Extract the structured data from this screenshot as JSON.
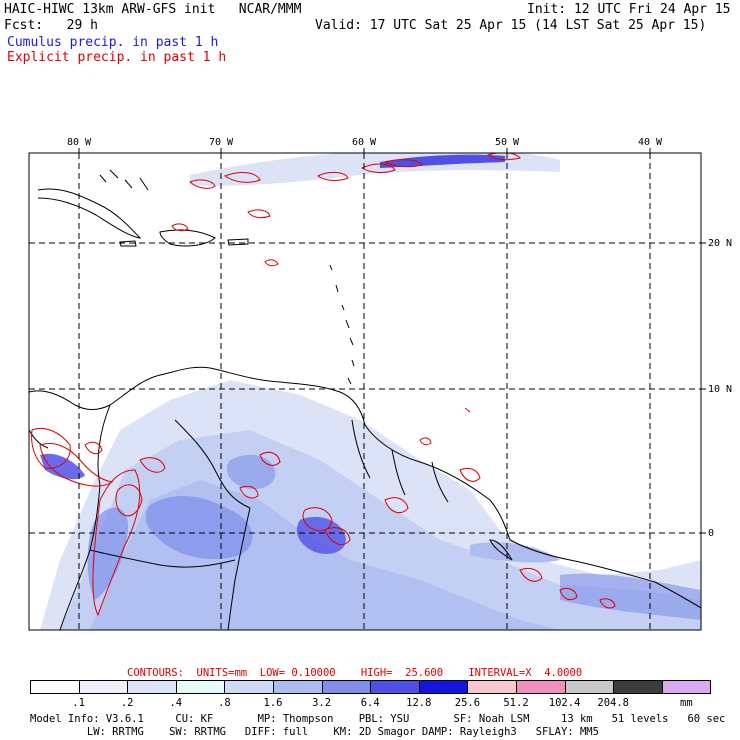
{
  "header": {
    "line1_left": "HAIC-HIWC 13km ARW-GFS init   NCAR/MMM",
    "line1_right": "Init: 12 UTC Fri 24 Apr 15",
    "line2_left": "Fcst:   29 h",
    "line2_right": "Valid: 17 UTC Sat 25 Apr 15 (14 LST Sat 25 Apr 15)",
    "legend_cumulus": "Cumulus precip. in past 1 h",
    "legend_explicit": "Explicit precip. in past 1 h"
  },
  "map": {
    "lon_labels": [
      "80 W",
      "70 W",
      "60 W",
      "50 W",
      "40 W"
    ],
    "lat_labels": [
      "20 N",
      "10 N",
      "0"
    ]
  },
  "contours_line": "CONTOURS:  UNITS=mm  LOW= 0.10000    HIGH=  25.600    INTERVAL=X  4.0000",
  "colorbar": {
    "labels": [
      ".1",
      ".2",
      ".4",
      ".8",
      "1.6",
      "3.2",
      "6.4",
      "12.8",
      "25.6",
      "51.2",
      "102.4",
      "204.8"
    ],
    "unit": "mm",
    "colors": [
      "#ffffff",
      "#eef1fb",
      "#dde3f7",
      "#e8fafa",
      "#cfdaf5",
      "#aebcf0",
      "#8090ea",
      "#5050e6",
      "#1515e0",
      "#f8c6cc",
      "#f090bc",
      "#c8c8c8",
      "#3c3c3c",
      "#dcaaf0"
    ]
  },
  "model_info": {
    "line1": "Model Info: V3.6.1     CU: KF       MP: Thompson    PBL: YSU       SF: Noah LSM     13 km   51 levels   60 sec",
    "line2": "         LW: RRTMG    SW: RRTMG   DIFF: full    KM: 2D Smagor DAMP: Rayleigh3   SFLAY: MM5"
  }
}
